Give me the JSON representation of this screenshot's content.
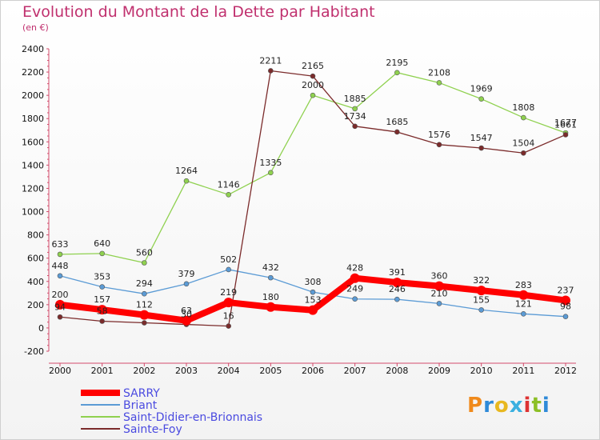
{
  "header": {
    "title": "Evolution du Montant de la Dette par Habitant",
    "subtitle": "(en €)"
  },
  "logo": {
    "text": "Proxiti",
    "colors": [
      "#f08a1c",
      "#2e8ad8",
      "#e8b820",
      "#3ab0e0",
      "#d33",
      "#8cbf26",
      "#2e8ad8"
    ]
  },
  "chart_data": {
    "type": "line",
    "title": "Evolution du Montant de la Dette par Habitant",
    "subtitle": "(en €)",
    "x": [
      "2000",
      "2001",
      "2002",
      "2003",
      "2004",
      "2005",
      "2006",
      "2007",
      "2008",
      "2009",
      "2010",
      "2011",
      "2012"
    ],
    "ylim": [
      -200,
      2400
    ],
    "yticks": [
      -200,
      0,
      200,
      400,
      600,
      800,
      1000,
      1200,
      1400,
      1600,
      1800,
      2000,
      2200,
      2400
    ],
    "grid": false,
    "legend": "bottom-left",
    "series": [
      {
        "name": "SARRY",
        "color": "#ff0000",
        "values": [
          200,
          157,
          112,
          63,
          219,
          180,
          153,
          428,
          391,
          360,
          322,
          283,
          237
        ],
        "labels": [
          "200",
          "157",
          "112",
          "63",
          "219",
          "180",
          "153",
          "428",
          "391",
          "360",
          "322",
          "283",
          "237"
        ]
      },
      {
        "name": "Briant",
        "color": "#5b9bd5",
        "values": [
          448,
          353,
          294,
          379,
          502,
          432,
          308,
          249,
          246,
          210,
          155,
          121,
          98
        ],
        "labels": [
          "448",
          "353",
          "294",
          "379",
          "502",
          "432",
          "308",
          "249",
          "246",
          "210",
          "155",
          "121",
          "98"
        ]
      },
      {
        "name": "Saint-Didier-en-Brionnais",
        "color": "#8fd14f",
        "values": [
          633,
          640,
          560,
          1264,
          1146,
          1335,
          2000,
          1885,
          2195,
          2108,
          1969,
          1808,
          1677
        ],
        "labels": [
          "633",
          "640",
          "560",
          "1264",
          "1146",
          "1335",
          "2000",
          "1885",
          "2195",
          "2108",
          "1969",
          "1808",
          "1677"
        ]
      },
      {
        "name": "Sainte-Foy",
        "color": "#7b2b2b",
        "values": [
          94,
          58,
          44,
          30,
          16,
          2211,
          2165,
          1734,
          1685,
          1576,
          1547,
          1504,
          1661
        ],
        "labels": [
          "94",
          "58",
          "",
          "30",
          "16",
          "2211",
          "2165",
          "1734",
          "1685",
          "1576",
          "1547",
          "1504",
          "1661"
        ]
      }
    ]
  }
}
